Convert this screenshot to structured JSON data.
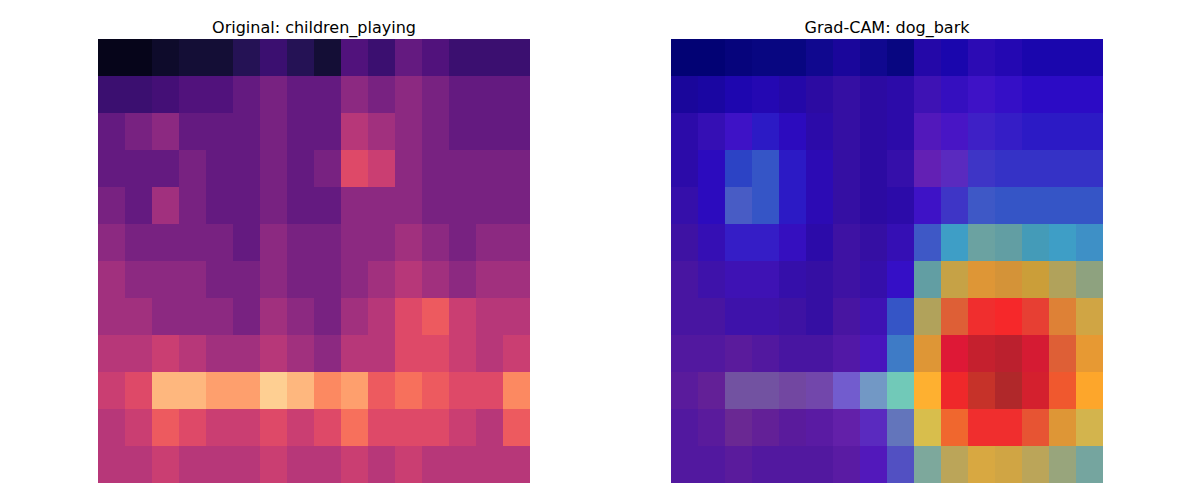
{
  "chart_data": [
    {
      "type": "heatmap",
      "title": "Original: children_playing",
      "color": "magma",
      "zlim": [
        0,
        1
      ],
      "tick_labels": false,
      "cells": [
        [
          0.05,
          0.05,
          0.08,
          0.1,
          0.1,
          0.15,
          0.2,
          0.15,
          0.1,
          0.25,
          0.2,
          0.3,
          0.25,
          0.2,
          0.2,
          0.2
        ],
        [
          0.2,
          0.2,
          0.22,
          0.25,
          0.25,
          0.3,
          0.35,
          0.3,
          0.3,
          0.4,
          0.35,
          0.4,
          0.35,
          0.3,
          0.3,
          0.3
        ],
        [
          0.3,
          0.35,
          0.4,
          0.3,
          0.3,
          0.3,
          0.35,
          0.3,
          0.3,
          0.5,
          0.45,
          0.4,
          0.35,
          0.3,
          0.3,
          0.3
        ],
        [
          0.3,
          0.3,
          0.3,
          0.35,
          0.3,
          0.3,
          0.35,
          0.3,
          0.35,
          0.6,
          0.55,
          0.4,
          0.35,
          0.35,
          0.35,
          0.35
        ],
        [
          0.35,
          0.3,
          0.45,
          0.35,
          0.3,
          0.3,
          0.35,
          0.3,
          0.3,
          0.4,
          0.4,
          0.4,
          0.35,
          0.35,
          0.35,
          0.35
        ],
        [
          0.4,
          0.35,
          0.35,
          0.35,
          0.35,
          0.3,
          0.4,
          0.35,
          0.35,
          0.4,
          0.4,
          0.45,
          0.4,
          0.35,
          0.4,
          0.4
        ],
        [
          0.45,
          0.4,
          0.4,
          0.4,
          0.35,
          0.35,
          0.4,
          0.35,
          0.35,
          0.4,
          0.45,
          0.5,
          0.45,
          0.4,
          0.45,
          0.45
        ],
        [
          0.45,
          0.45,
          0.4,
          0.4,
          0.4,
          0.35,
          0.45,
          0.4,
          0.35,
          0.45,
          0.5,
          0.6,
          0.65,
          0.55,
          0.5,
          0.5
        ],
        [
          0.5,
          0.5,
          0.55,
          0.5,
          0.45,
          0.45,
          0.5,
          0.45,
          0.4,
          0.5,
          0.5,
          0.6,
          0.6,
          0.55,
          0.5,
          0.55
        ],
        [
          0.55,
          0.6,
          0.85,
          0.85,
          0.8,
          0.8,
          0.9,
          0.85,
          0.75,
          0.8,
          0.65,
          0.7,
          0.65,
          0.6,
          0.6,
          0.75
        ],
        [
          0.5,
          0.55,
          0.65,
          0.6,
          0.55,
          0.55,
          0.6,
          0.55,
          0.6,
          0.7,
          0.6,
          0.6,
          0.6,
          0.55,
          0.5,
          0.65
        ],
        [
          0.5,
          0.5,
          0.55,
          0.5,
          0.5,
          0.5,
          0.55,
          0.5,
          0.5,
          0.55,
          0.5,
          0.55,
          0.5,
          0.5,
          0.5,
          0.5
        ]
      ]
    },
    {
      "type": "heatmap",
      "title": "Grad-CAM: dog_bark",
      "color": "jet",
      "zlim": [
        0,
        1
      ],
      "tick_labels": false,
      "cells": [
        [
          0.1,
          0.1,
          0.1,
          0.1,
          0.1,
          0.1,
          0.1,
          0.1,
          0.1,
          0.12,
          0.15,
          0.15,
          0.15,
          0.15,
          0.15,
          0.15
        ],
        [
          0.1,
          0.12,
          0.15,
          0.15,
          0.12,
          0.1,
          0.1,
          0.1,
          0.12,
          0.15,
          0.18,
          0.2,
          0.2,
          0.2,
          0.2,
          0.2
        ],
        [
          0.12,
          0.15,
          0.2,
          0.22,
          0.18,
          0.12,
          0.1,
          0.1,
          0.12,
          0.18,
          0.2,
          0.22,
          0.22,
          0.22,
          0.22,
          0.22
        ],
        [
          0.12,
          0.18,
          0.28,
          0.3,
          0.22,
          0.15,
          0.1,
          0.1,
          0.12,
          0.18,
          0.22,
          0.25,
          0.25,
          0.25,
          0.25,
          0.25
        ],
        [
          0.12,
          0.18,
          0.3,
          0.3,
          0.22,
          0.15,
          0.1,
          0.1,
          0.12,
          0.2,
          0.25,
          0.3,
          0.3,
          0.3,
          0.3,
          0.3
        ],
        [
          0.1,
          0.15,
          0.22,
          0.22,
          0.18,
          0.12,
          0.1,
          0.1,
          0.15,
          0.3,
          0.4,
          0.45,
          0.45,
          0.42,
          0.4,
          0.38
        ],
        [
          0.1,
          0.12,
          0.15,
          0.15,
          0.12,
          0.1,
          0.1,
          0.12,
          0.2,
          0.45,
          0.58,
          0.62,
          0.62,
          0.6,
          0.55,
          0.5
        ],
        [
          0.1,
          0.1,
          0.12,
          0.12,
          0.1,
          0.1,
          0.1,
          0.15,
          0.3,
          0.55,
          0.7,
          0.78,
          0.8,
          0.75,
          0.65,
          0.58
        ],
        [
          0.1,
          0.1,
          0.1,
          0.1,
          0.1,
          0.1,
          0.12,
          0.18,
          0.35,
          0.62,
          0.8,
          0.92,
          0.95,
          0.85,
          0.7,
          0.62
        ],
        [
          0.1,
          0.1,
          0.1,
          0.1,
          0.12,
          0.15,
          0.2,
          0.3,
          0.4,
          0.65,
          0.82,
          0.95,
          1.0,
          0.88,
          0.72,
          0.65
        ],
        [
          0.1,
          0.1,
          0.1,
          0.1,
          0.1,
          0.12,
          0.15,
          0.22,
          0.32,
          0.55,
          0.7,
          0.78,
          0.78,
          0.72,
          0.62,
          0.55
        ],
        [
          0.1,
          0.1,
          0.1,
          0.1,
          0.1,
          0.1,
          0.12,
          0.18,
          0.28,
          0.45,
          0.55,
          0.58,
          0.58,
          0.55,
          0.5,
          0.45
        ]
      ]
    }
  ]
}
